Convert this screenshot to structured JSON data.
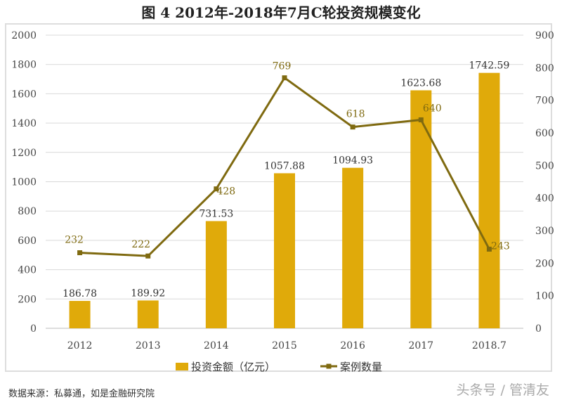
{
  "chart_data": {
    "type": "bar",
    "title": "图 4    2012年-2018年7月C轮投资规模变化",
    "categories": [
      "2012",
      "2013",
      "2014",
      "2015",
      "2016",
      "2017",
      "2018.7"
    ],
    "series": [
      {
        "name": "投资金额（亿元）",
        "type": "bar",
        "axis": "left",
        "color": "#E0AA0A",
        "values": [
          186.78,
          189.92,
          731.53,
          1057.88,
          1094.93,
          1623.68,
          1742.59
        ]
      },
      {
        "name": "案例数量",
        "type": "line",
        "axis": "right",
        "color": "#7F6A10",
        "values": [
          232,
          222,
          428,
          769,
          618,
          640,
          243
        ]
      }
    ],
    "ylim_left": [
      0,
      2000
    ],
    "yticks_left": [
      0,
      200,
      400,
      600,
      800,
      1000,
      1200,
      1400,
      1600,
      1800,
      2000
    ],
    "ylim_right": [
      0,
      900
    ],
    "yticks_right": [
      0,
      100,
      200,
      300,
      400,
      500,
      600,
      700,
      800,
      900
    ],
    "grid": true,
    "legend": "bottom"
  },
  "footer": {
    "source": "数据来源：私募通，如是金融研究院",
    "watermark": "头条号 / 管清友"
  }
}
